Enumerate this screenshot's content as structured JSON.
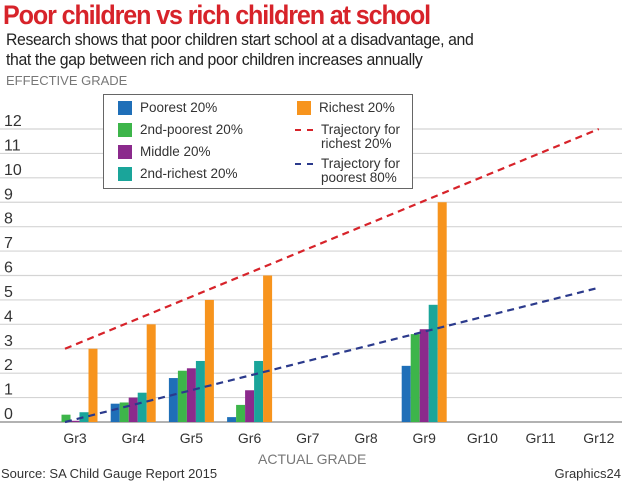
{
  "chart_data": {
    "type": "bar",
    "title": "Poor children vs rich children at school",
    "subtitle": "Research shows that poor children start school at a disadvantage, and that the gap between rich and poor children increases annually",
    "subtitle_lines": [
      "Research shows that poor children start school at a disadvantage, and",
      "that the gap between rich and poor children increases annually"
    ],
    "ylabel": "EFFECTIVE GRADE",
    "xlabel": "ACTUAL GRADE",
    "ylim": [
      0,
      12
    ],
    "yticks": [
      "0",
      "1",
      "2",
      "3",
      "4",
      "5",
      "6",
      "7",
      "8",
      "9",
      "10",
      "11",
      "12"
    ],
    "categories": [
      "Gr3",
      "Gr4",
      "Gr5",
      "Gr6",
      "Gr7",
      "Gr8",
      "Gr9",
      "Gr10",
      "Gr11",
      "Gr12"
    ],
    "grid": true,
    "legend_position": "top-center",
    "series": [
      {
        "name": "Poorest 20%",
        "color": "#1f6fb8",
        "values": [
          0,
          0.75,
          1.8,
          0.2,
          null,
          null,
          2.3,
          null,
          null,
          null
        ]
      },
      {
        "name": "2nd-poorest 20%",
        "color": "#3db54a",
        "values": [
          0.3,
          0.8,
          2.1,
          0.7,
          null,
          null,
          3.6,
          null,
          null,
          null
        ]
      },
      {
        "name": "Middle 20%",
        "color": "#8b2a8c",
        "values": [
          0.05,
          1.0,
          2.2,
          1.3,
          null,
          null,
          3.8,
          null,
          null,
          null
        ]
      },
      {
        "name": "2nd-richest 20%",
        "color": "#1aa59a",
        "values": [
          0.4,
          1.2,
          2.5,
          2.5,
          null,
          null,
          4.8,
          null,
          null,
          null
        ]
      },
      {
        "name": "Richest 20%",
        "color": "#f7941d",
        "values": [
          3.0,
          4.0,
          5.0,
          6.0,
          null,
          null,
          9.0,
          null,
          null,
          null
        ]
      }
    ],
    "lines": [
      {
        "name": "Trajectory for richest 20%",
        "name_lines": [
          "Trajectory for",
          "richest 20%"
        ],
        "color": "#d7232a",
        "style": "dashed",
        "from": [
          "Gr3",
          3
        ],
        "to": [
          "Gr12",
          12
        ]
      },
      {
        "name": "Trajectory for poorest 80%",
        "name_lines": [
          "Trajectory for",
          "poorest 80%"
        ],
        "color": "#2b3a8c",
        "style": "dashed",
        "from": [
          "Gr3",
          0
        ],
        "to": [
          "Gr12",
          5.5
        ]
      }
    ]
  },
  "footer": {
    "source": "Source: SA Child Gauge Report 2015",
    "credit": "Graphics24"
  }
}
